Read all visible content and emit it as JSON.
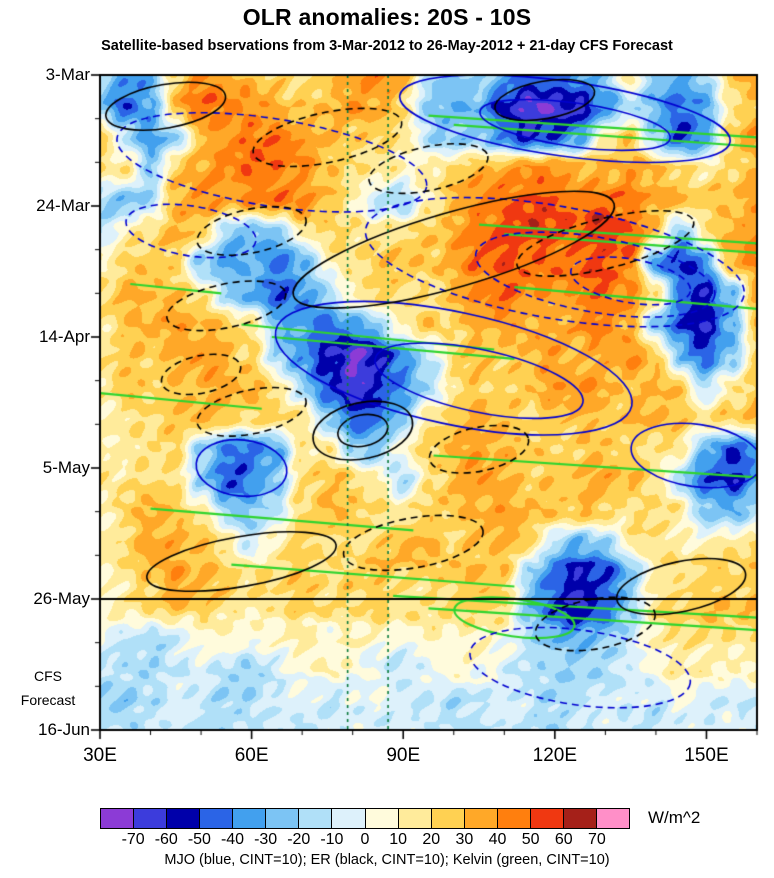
{
  "chart": {
    "title": "OLR anomalies: 20S - 10S",
    "subtitle": "Satellite-based bservations from 3-Mar-2012 to 26-May-2012 + 21-day CFS Forecast",
    "caption": "MJO (blue, CINT=10); ER (black, CINT=10); Kelvin (green, CINT=10)",
    "forecast_label_lines": [
      "CFS",
      "Forecast"
    ]
  },
  "colorbar": {
    "units": "W/m^2",
    "tick_labels": [
      "-70",
      "-60",
      "-50",
      "-40",
      "-30",
      "-20",
      "-10",
      "0",
      "10",
      "20",
      "30",
      "40",
      "50",
      "60",
      "70"
    ],
    "colors": [
      "#8c3bd6",
      "#3c3cdc",
      "#0000aa",
      "#2b64e6",
      "#42a0ee",
      "#7cc4f4",
      "#b0e0f8",
      "#ddf1fb",
      "#fffbdc",
      "#ffeb9b",
      "#ffd152",
      "#ffa828",
      "#ff7f0e",
      "#f03811",
      "#a52019",
      "#ff8fc8"
    ]
  },
  "chart_data": {
    "type": "heatmap",
    "title": "OLR anomalies: 20S - 10S",
    "x_ticks": [
      "30E",
      "60E",
      "90E",
      "120E",
      "150E"
    ],
    "x_tick_values": [
      30,
      60,
      90,
      120,
      150
    ],
    "x_minor_step": 10,
    "y_ticks": [
      "3-Mar",
      "24-Mar",
      "14-Apr",
      "5-May",
      "26-May",
      "16-Jun"
    ],
    "y_tick_values": [
      0,
      21,
      42,
      63,
      84,
      105
    ],
    "y_minor_step": 7,
    "xlim": [
      30,
      160
    ],
    "ylim_days": [
      0,
      105
    ],
    "forecast_start_day": 84,
    "levels": [
      -70,
      -60,
      -50,
      -40,
      -30,
      -20,
      -10,
      0,
      10,
      20,
      30,
      40,
      50,
      60,
      70
    ],
    "grid_lons": [
      30,
      35,
      40,
      45,
      50,
      55,
      60,
      65,
      70,
      75,
      80,
      85,
      90,
      95,
      100,
      105,
      110,
      115,
      120,
      125,
      130,
      135,
      140,
      145,
      150,
      155,
      160
    ],
    "grid_days": [
      0,
      5,
      10,
      15,
      20,
      25,
      30,
      35,
      40,
      45,
      50,
      55,
      60,
      65,
      70,
      75,
      80,
      85,
      90,
      95,
      100,
      105
    ],
    "values": [
      [
        -20,
        -40,
        -30,
        25,
        45,
        35,
        30,
        25,
        20,
        25,
        35,
        40,
        30,
        -15,
        -25,
        -15,
        -30,
        -45,
        -40,
        -30,
        -20,
        15,
        -25,
        -35,
        -20,
        25,
        35
      ],
      [
        -25,
        -45,
        -30,
        30,
        50,
        40,
        35,
        30,
        25,
        30,
        40,
        35,
        20,
        -20,
        -25,
        -30,
        -55,
        -75,
        -70,
        -60,
        -40,
        -15,
        -30,
        -45,
        -30,
        20,
        30
      ],
      [
        25,
        -15,
        -35,
        -20,
        30,
        40,
        45,
        50,
        40,
        30,
        25,
        20,
        15,
        -15,
        -25,
        -20,
        -40,
        -55,
        -45,
        -30,
        15,
        25,
        -20,
        -55,
        -35,
        25,
        35
      ],
      [
        15,
        20,
        -20,
        25,
        35,
        40,
        45,
        45,
        40,
        30,
        20,
        15,
        10,
        15,
        25,
        30,
        35,
        40,
        40,
        35,
        30,
        35,
        30,
        20,
        15,
        25,
        30
      ],
      [
        -20,
        -30,
        -15,
        30,
        40,
        35,
        40,
        50,
        45,
        30,
        15,
        -15,
        -20,
        10,
        30,
        40,
        45,
        50,
        50,
        45,
        50,
        45,
        35,
        30,
        25,
        30,
        35
      ],
      [
        -15,
        10,
        20,
        30,
        25,
        -20,
        -30,
        -20,
        15,
        25,
        20,
        15,
        20,
        25,
        35,
        45,
        50,
        55,
        50,
        55,
        60,
        50,
        30,
        -25,
        20,
        35,
        40
      ],
      [
        10,
        20,
        25,
        20,
        -25,
        -35,
        -30,
        -40,
        -30,
        10,
        20,
        25,
        30,
        25,
        35,
        45,
        50,
        45,
        45,
        50,
        55,
        45,
        -35,
        -55,
        -35,
        35,
        40
      ],
      [
        20,
        30,
        30,
        25,
        15,
        -20,
        -35,
        -45,
        -35,
        -15,
        15,
        25,
        20,
        15,
        30,
        40,
        45,
        40,
        35,
        45,
        50,
        40,
        25,
        -40,
        -55,
        -25,
        30
      ],
      [
        15,
        25,
        30,
        35,
        30,
        25,
        15,
        -25,
        -35,
        -40,
        -30,
        -20,
        15,
        25,
        20,
        30,
        35,
        30,
        30,
        40,
        45,
        35,
        -20,
        -50,
        -60,
        -30,
        25
      ],
      [
        20,
        25,
        25,
        30,
        35,
        30,
        20,
        -15,
        -35,
        -55,
        -70,
        -60,
        -35,
        -15,
        20,
        25,
        20,
        30,
        35,
        30,
        35,
        40,
        30,
        -25,
        -45,
        -25,
        20
      ],
      [
        15,
        25,
        20,
        25,
        30,
        35,
        30,
        20,
        -20,
        -45,
        -65,
        -55,
        -35,
        -20,
        15,
        25,
        20,
        25,
        35,
        40,
        35,
        30,
        35,
        25,
        -15,
        15,
        25
      ],
      [
        10,
        15,
        20,
        25,
        30,
        25,
        20,
        25,
        20,
        -20,
        -45,
        -40,
        -20,
        15,
        25,
        30,
        25,
        20,
        25,
        30,
        25,
        30,
        35,
        30,
        20,
        25,
        30
      ],
      [
        15,
        10,
        15,
        20,
        -20,
        -40,
        -45,
        -30,
        15,
        20,
        -15,
        -25,
        10,
        20,
        30,
        35,
        30,
        25,
        20,
        25,
        30,
        25,
        20,
        15,
        -30,
        -50,
        -40
      ],
      [
        20,
        15,
        20,
        15,
        -25,
        -50,
        -40,
        -20,
        20,
        30,
        25,
        15,
        -15,
        15,
        30,
        35,
        30,
        25,
        25,
        30,
        35,
        30,
        20,
        -15,
        -45,
        -55,
        -35
      ],
      [
        10,
        20,
        30,
        25,
        15,
        -20,
        -25,
        -10,
        20,
        35,
        30,
        20,
        15,
        20,
        25,
        30,
        35,
        30,
        25,
        30,
        25,
        20,
        25,
        15,
        -25,
        -30,
        -15
      ],
      [
        15,
        20,
        35,
        30,
        25,
        15,
        -10,
        15,
        25,
        20,
        20,
        25,
        35,
        30,
        20,
        25,
        30,
        25,
        -15,
        -30,
        -20,
        15,
        20,
        15,
        10,
        15,
        20
      ],
      [
        10,
        15,
        25,
        35,
        30,
        25,
        20,
        20,
        25,
        20,
        25,
        30,
        25,
        20,
        25,
        30,
        25,
        -20,
        -45,
        -60,
        -50,
        -25,
        15,
        20,
        25,
        20,
        25
      ],
      [
        10,
        15,
        20,
        30,
        25,
        20,
        15,
        20,
        25,
        20,
        20,
        25,
        20,
        15,
        20,
        25,
        20,
        -25,
        -50,
        -65,
        -45,
        -20,
        20,
        25,
        30,
        25,
        30
      ],
      [
        5,
        -10,
        -15,
        -10,
        5,
        10,
        5,
        5,
        10,
        5,
        10,
        10,
        5,
        10,
        5,
        10,
        5,
        -15,
        -30,
        -35,
        -25,
        -10,
        15,
        20,
        20,
        15,
        20
      ],
      [
        -10,
        -15,
        -20,
        -10,
        -5,
        -10,
        -15,
        -5,
        5,
        10,
        5,
        -5,
        -10,
        -5,
        5,
        5,
        -5,
        -10,
        -15,
        -20,
        -15,
        -5,
        5,
        15,
        10,
        5,
        10
      ],
      [
        -15,
        -20,
        -15,
        -5,
        -10,
        -20,
        -15,
        -10,
        -5,
        -10,
        -5,
        5,
        -5,
        -10,
        -15,
        -10,
        -5,
        -10,
        -20,
        -15,
        -10,
        -5,
        -10,
        5,
        -5,
        -10,
        -5
      ],
      [
        -10,
        -15,
        -10,
        -5,
        -15,
        -10,
        -5,
        -10,
        -15,
        -10,
        -5,
        -10,
        -5,
        -10,
        -15,
        -10,
        -5,
        -10,
        -15,
        -10,
        -5,
        -10,
        -15,
        -5,
        -10,
        -5,
        -10
      ]
    ],
    "overlays": {
      "mjo": {
        "label": "MJO",
        "color": "#0000d0",
        "contour_interval": 10,
        "ellipses": [
          [
            64,
            14,
            31,
            7,
            9,
            1
          ],
          [
            48,
            25,
            13,
            4,
            9,
            1
          ],
          [
            122,
            7,
            33,
            6,
            8,
            0
          ],
          [
            124,
            8,
            19,
            3.5,
            8,
            0
          ],
          [
            120,
            30,
            38,
            9,
            10,
            1
          ],
          [
            128,
            32,
            24,
            6,
            10,
            1
          ],
          [
            135,
            33,
            12,
            3.5,
            10,
            1
          ],
          [
            100,
            47,
            36,
            9,
            12,
            0
          ],
          [
            105,
            49,
            21,
            5,
            12,
            0
          ],
          [
            58,
            63,
            9,
            4.5,
            6,
            0
          ],
          [
            148,
            61,
            13,
            5,
            8,
            0
          ],
          [
            125,
            95,
            22,
            6,
            8,
            1
          ]
        ]
      },
      "er": {
        "label": "ER",
        "color": "#000000",
        "contour_interval": 10,
        "ellipses": [
          [
            43,
            5,
            12,
            3.5,
            -10,
            0
          ],
          [
            75,
            10,
            15,
            4,
            -12,
            1
          ],
          [
            95,
            15,
            12,
            3.5,
            -12,
            1
          ],
          [
            100,
            28,
            33,
            6,
            -16,
            0
          ],
          [
            130,
            27,
            18,
            4,
            -14,
            1
          ],
          [
            60,
            25,
            11,
            3.5,
            -12,
            1
          ],
          [
            118,
            4,
            10,
            3,
            -10,
            0
          ],
          [
            55,
            37,
            12,
            3.5,
            -12,
            1
          ],
          [
            50,
            48,
            8,
            3,
            -12,
            1
          ],
          [
            60,
            54,
            11,
            3.5,
            -12,
            1
          ],
          [
            82,
            57,
            10,
            4.5,
            -12,
            0
          ],
          [
            82,
            57,
            5,
            2.5,
            -12,
            0
          ],
          [
            105,
            60,
            10,
            3.5,
            -12,
            1
          ],
          [
            58,
            78,
            19,
            4,
            -10,
            0
          ],
          [
            92,
            75,
            14,
            4,
            -10,
            1
          ],
          [
            145,
            82,
            13,
            4,
            -12,
            0
          ],
          [
            128,
            88,
            12,
            4,
            -10,
            1
          ]
        ]
      },
      "kelvin": {
        "label": "Kelvin",
        "color": "#2fd42f",
        "contour_interval": 10,
        "lines": [
          [
            95,
            6.5,
            160,
            10
          ],
          [
            100,
            8,
            160,
            11.5
          ],
          [
            105,
            24,
            160,
            27
          ],
          [
            110,
            25.5,
            160,
            28.5
          ],
          [
            36,
            33.5,
            54,
            35
          ],
          [
            112,
            34,
            160,
            37.5
          ],
          [
            58,
            40,
            108,
            44
          ],
          [
            64,
            42,
            112,
            45.5
          ],
          [
            30,
            51,
            62,
            53.5
          ],
          [
            96,
            61,
            160,
            64.5
          ],
          [
            40,
            69.5,
            92,
            73
          ],
          [
            56,
            78.5,
            112,
            82
          ],
          [
            88,
            83.5,
            160,
            87
          ],
          [
            95,
            85.5,
            160,
            89
          ]
        ],
        "ellipses": [
          [
            112,
            87,
            12,
            3,
            8,
            0
          ]
        ]
      },
      "vertical_dashed_lines": {
        "color": "#0a7a3c",
        "lons": [
          79,
          87
        ]
      },
      "forecast_divider": {
        "color": "#000000",
        "day": 84
      }
    }
  }
}
